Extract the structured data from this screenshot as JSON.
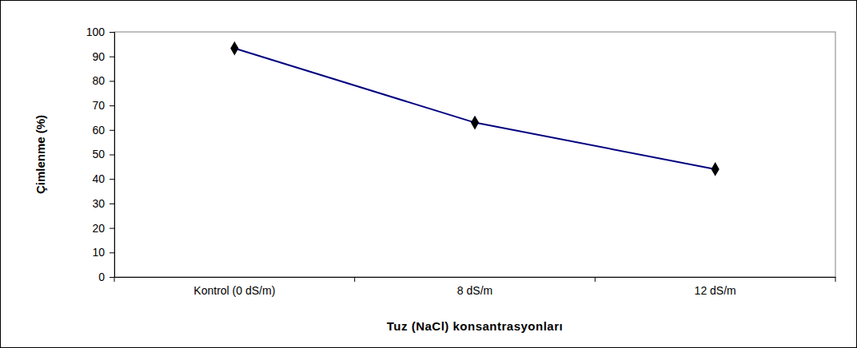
{
  "chart_data": {
    "type": "line",
    "x_label": "Tuz (NaCl) konsantrasyonları",
    "y_label": "Çimlenme (%)",
    "categories": [
      "Kontrol (0 dS/m)",
      "8 dS/m",
      "12 dS/m"
    ],
    "values": [
      93.3,
      63,
      44
    ],
    "color": "#000080",
    "marker": "diamond",
    "line_style": "solid",
    "ylim": [
      0,
      100
    ],
    "yticks": [
      0,
      10,
      20,
      30,
      40,
      50,
      60,
      70,
      80,
      90,
      100
    ],
    "grid": false
  }
}
